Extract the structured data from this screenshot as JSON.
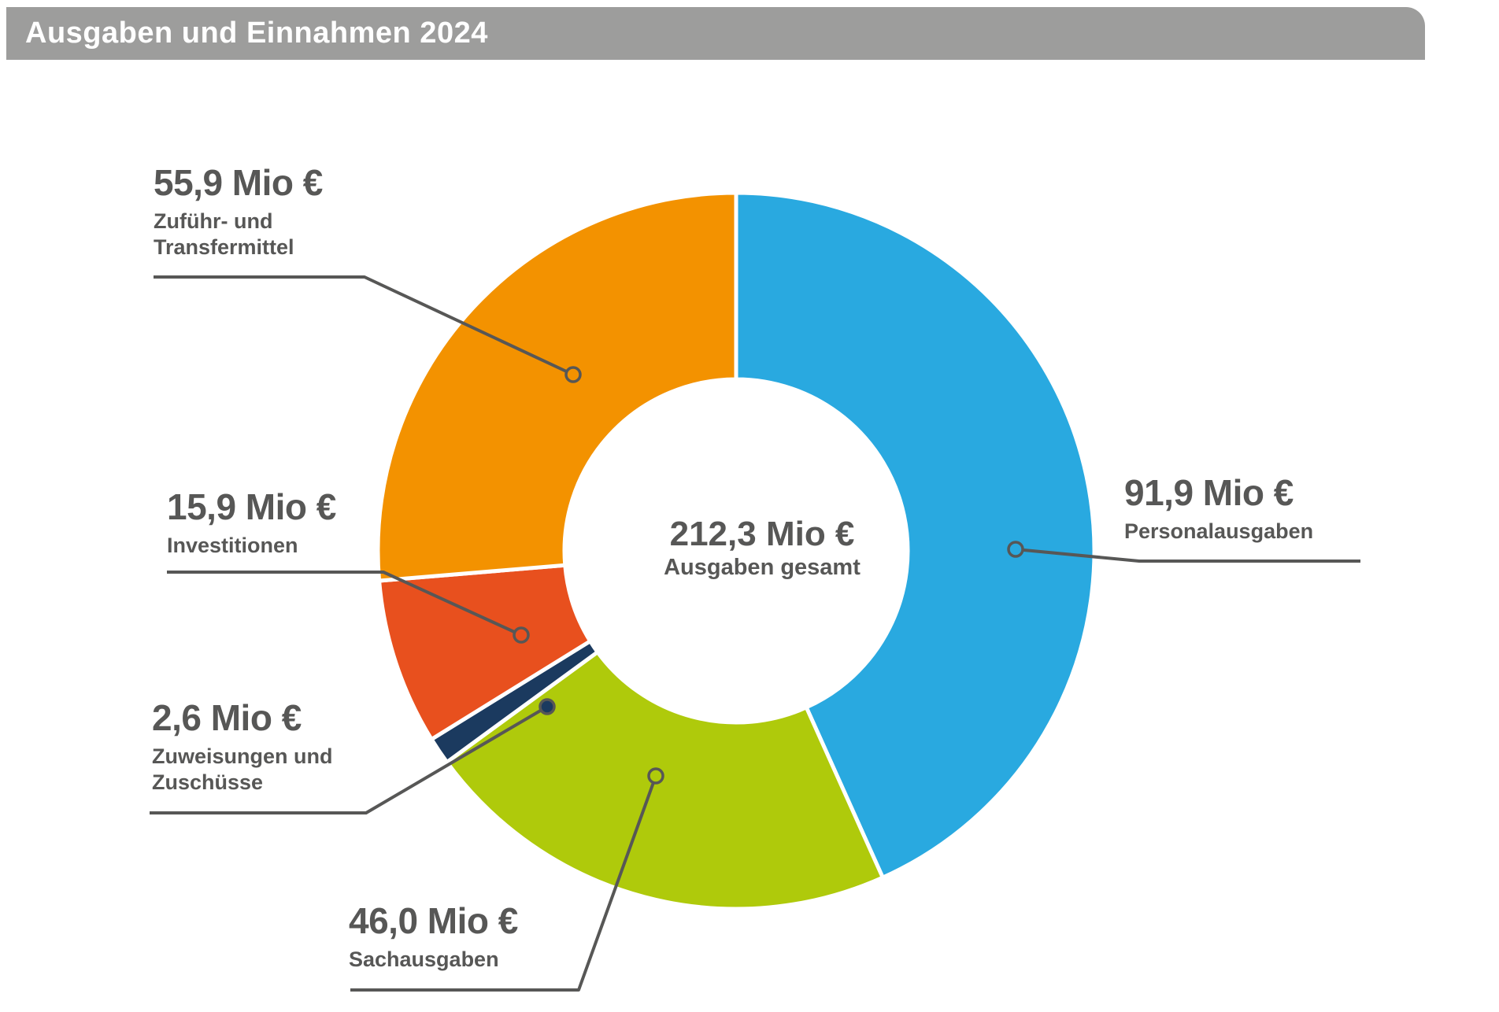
{
  "title_bar": {
    "title": "Ausgaben und Einnahmen 2024"
  },
  "donut_center": {
    "value": "212,3 Mio €",
    "label": "Ausgaben gesamt"
  },
  "colors": {
    "title_bar_background": "#9D9D9C",
    "title_text": "#FFFFFF",
    "label_text": "#575756",
    "leader_line": "#575756",
    "background": "#FFFFFF"
  },
  "chart_data": {
    "type": "pie",
    "subtype": "donut",
    "title": "Ausgaben und Einnahmen 2024",
    "unit": "Mio €",
    "center_value": "212,3 Mio €",
    "center_label": "Ausgaben gesamt",
    "total_mio_eur": 212.3,
    "direction": "clockwise",
    "start_angle_deg_from_top": 0,
    "segment_gap": "thin white divider between slices",
    "segments": [
      {
        "label": "Personalausgaben",
        "value": 91.9,
        "value_text": "91,9 Mio €",
        "color": "#29A9E0"
      },
      {
        "label": "Sachausgaben",
        "value": 46.0,
        "value_text": "46,0 Mio €",
        "color": "#AFCA0B"
      },
      {
        "label": "Zuweisungen und Zuschüsse",
        "value": 2.6,
        "value_text": "2,6 Mio €",
        "color": "#1B3A5F"
      },
      {
        "label": "Investitionen",
        "value": 15.9,
        "value_text": "15,9 Mio €",
        "color": "#E8501E"
      },
      {
        "label": "Zuführ- und Transfermittel",
        "value": 55.9,
        "value_text": "55,9 Mio €",
        "color": "#F39200"
      }
    ]
  }
}
